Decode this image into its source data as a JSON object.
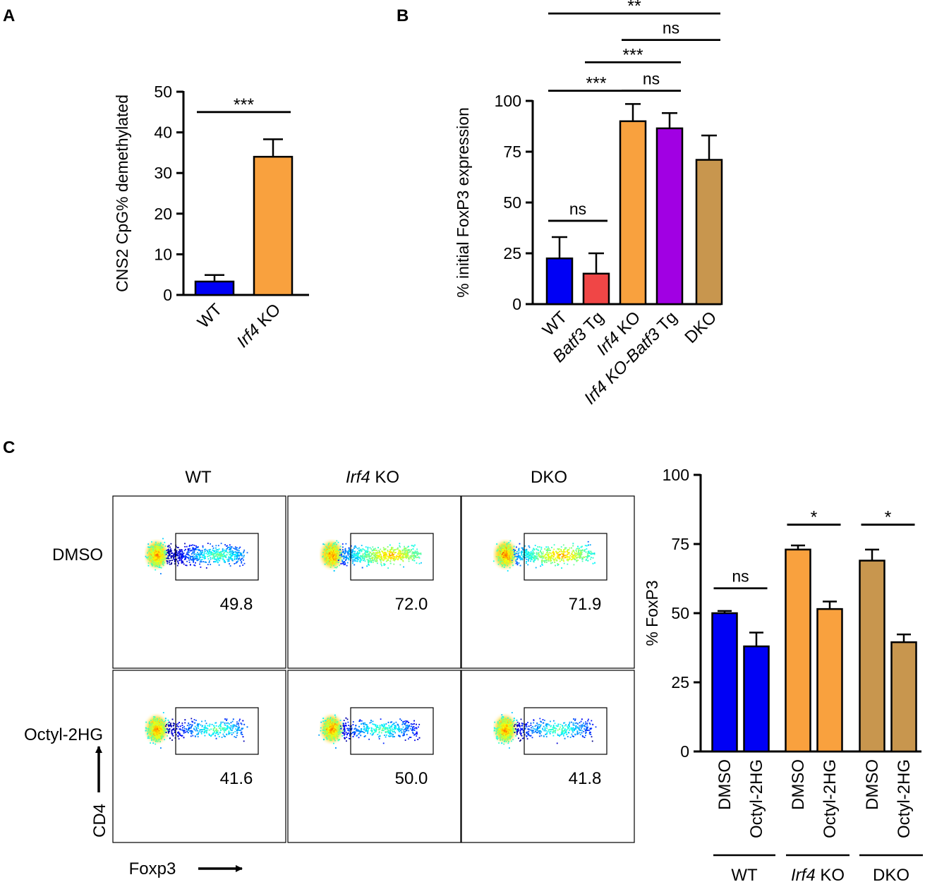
{
  "panel_labels": {
    "a": "A",
    "b": "B",
    "c": "C"
  },
  "colors": {
    "blue": "#0000F5",
    "red": "#F04646",
    "orange": "#F9A13E",
    "purple": "#A100E3",
    "tan": "#C8964E",
    "axis": "#000000"
  },
  "chart_data": [
    {
      "id": "A",
      "type": "bar",
      "ylabel": "CNS2 CpG% demethylated",
      "ylim": [
        0,
        50
      ],
      "yticks": [
        0,
        10,
        20,
        30,
        40,
        50
      ],
      "categories": [
        {
          "pre": "",
          "it": "",
          "post": "WT"
        },
        {
          "pre": "",
          "it": "Irf4",
          "post": " KO"
        }
      ],
      "values": [
        3.3,
        34.0
      ],
      "errors": [
        1.6,
        4.3
      ],
      "bar_colors": [
        "#0000F5",
        "#F9A13E"
      ],
      "significance": [
        {
          "from": 0,
          "to": 1,
          "y": 45,
          "label": "***"
        }
      ]
    },
    {
      "id": "B",
      "type": "bar",
      "ylabel": "% initial FoxP3 expression",
      "ylim": [
        0,
        100
      ],
      "yticks": [
        0,
        25,
        50,
        75,
        100
      ],
      "categories": [
        {
          "pre": "",
          "it": "",
          "post": "WT"
        },
        {
          "pre": "",
          "it": "Batf3",
          "post": " Tg"
        },
        {
          "pre": "",
          "it": "Irf4",
          "post": " KO"
        },
        {
          "pre": "Irf4",
          "it": " KO-Batf3",
          "post": " Tg"
        },
        {
          "pre": "",
          "it": "",
          "post": "DKO"
        }
      ],
      "values": [
        22.5,
        15.0,
        90.0,
        86.5,
        71.0
      ],
      "errors": [
        10.5,
        10.0,
        8.5,
        7.5,
        12.0
      ],
      "bar_colors": [
        "#0000F5",
        "#F04646",
        "#F9A13E",
        "#A100E3",
        "#C8964E"
      ],
      "significance": [
        {
          "from": 0,
          "to": 1,
          "y": 41,
          "label": "ns"
        },
        {
          "from": 0,
          "to": 2,
          "y": 105,
          "label": "***"
        },
        {
          "from": 2,
          "to": 3,
          "y": 105,
          "label": "ns"
        },
        {
          "from": 1,
          "to": 3,
          "y": 119,
          "label": "***"
        },
        {
          "from": 2,
          "to": 4,
          "y": 130,
          "label": "ns"
        },
        {
          "from": 0,
          "to": 4,
          "y": 143,
          "label": "**"
        }
      ]
    },
    {
      "id": "C-bar",
      "type": "bar",
      "ylabel": "% FoxP3",
      "ylim": [
        0,
        100
      ],
      "yticks": [
        0,
        25,
        50,
        75,
        100
      ],
      "categories": [
        "DMSO",
        "Octyl-2HG",
        "DMSO",
        "Octyl-2HG",
        "DMSO",
        "Octyl-2HG"
      ],
      "values": [
        50.0,
        38.0,
        73.0,
        51.5,
        69.0,
        39.5
      ],
      "errors": [
        0.8,
        5.0,
        1.5,
        2.7,
        4.0,
        2.8
      ],
      "bar_colors": [
        "#0000F5",
        "#0000F5",
        "#F9A13E",
        "#F9A13E",
        "#C8964E",
        "#C8964E"
      ],
      "groups": [
        {
          "it": "",
          "post": "WT"
        },
        {
          "it": "Irf4",
          "post": " KO"
        },
        {
          "it": "",
          "post": "DKO"
        }
      ],
      "significance": [
        {
          "from": 0,
          "to": 1,
          "y": 59,
          "label": "ns"
        },
        {
          "from": 2,
          "to": 3,
          "y": 82,
          "label": "*"
        },
        {
          "from": 4,
          "to": 5,
          "y": 82,
          "label": "*"
        }
      ]
    }
  ],
  "flow": {
    "columns": [
      {
        "it": "",
        "post": "WT"
      },
      {
        "it": "Irf4",
        "post": " KO"
      },
      {
        "it": "",
        "post": "DKO"
      }
    ],
    "rows": [
      "DMSO",
      "Octyl-2HG"
    ],
    "percentages": [
      [
        "49.8",
        "72.0",
        "71.9"
      ],
      [
        "41.6",
        "50.0",
        "41.8"
      ]
    ],
    "x_axis_label": "Foxp3",
    "y_axis_label": "CD4"
  }
}
